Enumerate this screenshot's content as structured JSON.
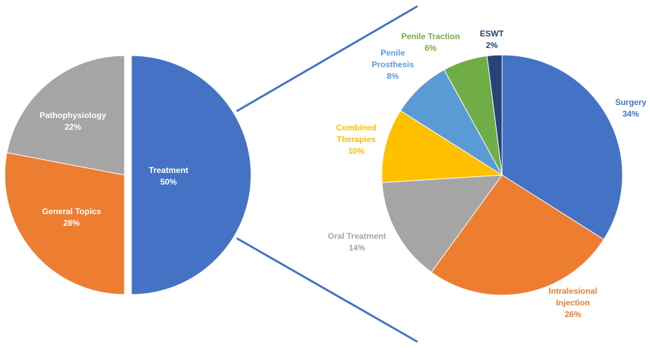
{
  "chart_data": [
    {
      "type": "pie",
      "labels": [
        "Treatment",
        "General Topics",
        "Pathophysiology"
      ],
      "values": [
        50,
        28,
        22
      ],
      "value_labels": [
        "50%",
        "28%",
        "22%"
      ],
      "colors": [
        "#4472c4",
        "#ed7d31",
        "#a5a5a5"
      ],
      "label_colors": [
        "#ffffff",
        "#ffffff",
        "#ffffff"
      ],
      "exploded": "Treatment",
      "legend": "none"
    },
    {
      "type": "pie",
      "labels": [
        "Surgery",
        "Intralesional Injection",
        "Oral Treatment",
        "Combined Therapies",
        "Penile Prosthesis",
        "Penile Traction",
        "ESWT"
      ],
      "values": [
        34,
        26,
        14,
        10,
        8,
        6,
        2
      ],
      "value_labels": [
        "34%",
        "26%",
        "14%",
        "10%",
        "8%",
        "6%",
        "2%"
      ],
      "colors": [
        "#4472c4",
        "#ed7d31",
        "#a5a5a5",
        "#ffc000",
        "#5b9bd5",
        "#70ad47",
        "#264478"
      ],
      "label_colors": [
        "#4472c4",
        "#ed7d31",
        "#a5a5a5",
        "#ffc000",
        "#5b9bd5",
        "#70ad47",
        "#264478"
      ],
      "breakdown_of": "Treatment",
      "legend": "none"
    }
  ],
  "connector_color": "#4472c4"
}
